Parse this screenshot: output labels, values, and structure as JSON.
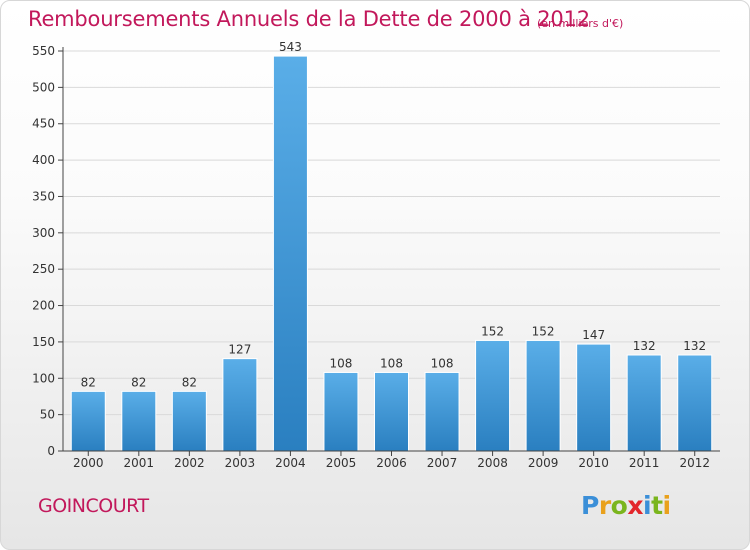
{
  "header": {
    "title": "Remboursements Annuels de la Dette de 2000 à 2012",
    "subtitle": "(en milliers d'€)"
  },
  "footer": {
    "commune": "GOINCOURT",
    "logo_letters": [
      {
        "ch": "P",
        "color": "#3b8fd8"
      },
      {
        "ch": "r",
        "color": "#e9a11c"
      },
      {
        "ch": "o",
        "color": "#7ab51d"
      },
      {
        "ch": "x",
        "color": "#e3262b"
      },
      {
        "ch": "i",
        "color": "#3b8fd8"
      },
      {
        "ch": "t",
        "color": "#7ab51d"
      },
      {
        "ch": "i",
        "color": "#e9a11c"
      }
    ]
  },
  "chart_data": {
    "type": "bar",
    "title": "Remboursements Annuels de la Dette de 2000 à 2012",
    "categories": [
      "2000",
      "2001",
      "2002",
      "2003",
      "2004",
      "2005",
      "2006",
      "2007",
      "2008",
      "2009",
      "2010",
      "2011",
      "2012"
    ],
    "values": [
      82,
      82,
      82,
      127,
      543,
      108,
      108,
      108,
      152,
      152,
      147,
      132,
      132
    ],
    "ylim": [
      0,
      550
    ],
    "yticks": [
      0,
      50,
      100,
      150,
      200,
      250,
      300,
      350,
      400,
      450,
      500,
      550
    ],
    "grid": true,
    "colors": {
      "bar_top": "#5aaee8",
      "bar_bottom": "#2a7fc0",
      "grid": "#d9d9d9",
      "axis": "#444444",
      "title": "#c2185b"
    }
  }
}
